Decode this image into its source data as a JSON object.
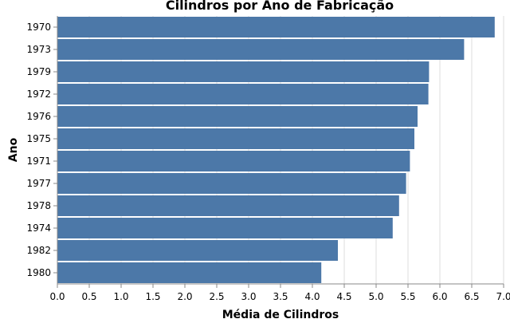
{
  "chart_data": {
    "type": "bar",
    "orientation": "horizontal",
    "title": "Cilindros por Ano de Fabricação",
    "xlabel": "Média de Cilindros",
    "ylabel": "Ano",
    "categories": [
      "1970",
      "1973",
      "1979",
      "1972",
      "1976",
      "1975",
      "1971",
      "1977",
      "1978",
      "1974",
      "1982",
      "1980"
    ],
    "values": [
      6.86,
      6.38,
      5.83,
      5.82,
      5.65,
      5.6,
      5.53,
      5.47,
      5.36,
      5.26,
      4.4,
      4.14
    ],
    "xlim": [
      0,
      7.0
    ],
    "xticks": [
      "0.0",
      "0.5",
      "1.0",
      "1.5",
      "2.0",
      "2.5",
      "3.0",
      "3.5",
      "4.0",
      "4.5",
      "5.0",
      "5.5",
      "6.0",
      "6.5",
      "7.0"
    ],
    "grid": true,
    "legend": "none",
    "bar_color": "#4c78a8"
  }
}
